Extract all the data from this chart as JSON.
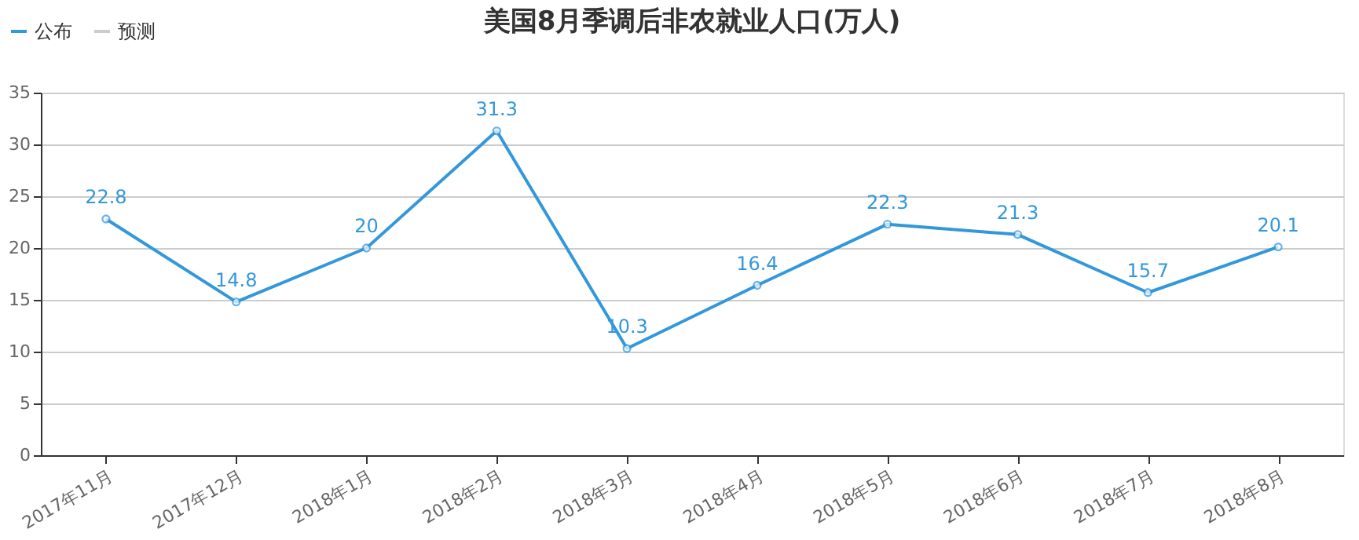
{
  "chart_data": {
    "type": "line",
    "title": "美国8月季调后非农就业人口(万人)",
    "categories": [
      "2017年11月",
      "2017年12月",
      "2018年1月",
      "2018年2月",
      "2018年3月",
      "2018年4月",
      "2018年5月",
      "2018年6月",
      "2018年7月",
      "2018年8月"
    ],
    "series": [
      {
        "name": "公布",
        "color": "#3398db",
        "values": [
          22.8,
          14.8,
          20,
          31.3,
          10.3,
          16.4,
          22.3,
          21.3,
          15.7,
          20.1
        ]
      },
      {
        "name": "预测",
        "color": "#cccccc",
        "values": [
          null,
          null,
          null,
          null,
          null,
          null,
          null,
          null,
          null,
          null
        ]
      }
    ],
    "ylim": [
      0,
      35
    ],
    "yticks": [
      0,
      5,
      10,
      15,
      20,
      25,
      30,
      35
    ],
    "grid": "y",
    "legend": "top left",
    "marker": "circle",
    "line_style": "solid",
    "data_labels": true
  }
}
